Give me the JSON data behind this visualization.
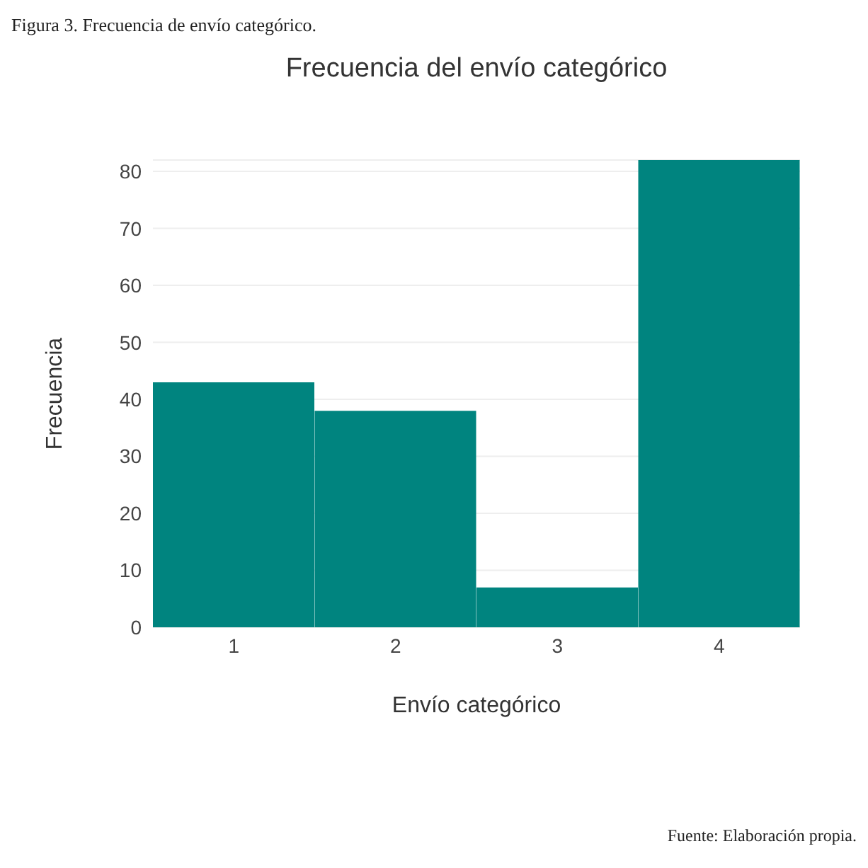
{
  "chart_data": {
    "type": "bar",
    "title": "Frecuencia del envío categórico",
    "xlabel": "Envío categórico",
    "ylabel": "Frecuencia",
    "categories": [
      "1",
      "2",
      "3",
      "4"
    ],
    "values": [
      43,
      38,
      7,
      82
    ],
    "color": "#00847f",
    "ylim": [
      0,
      82
    ],
    "yticks": [
      0,
      10,
      20,
      30,
      40,
      50,
      60,
      70,
      80
    ],
    "grid": "y",
    "annotations": [
      "Figura 3. Frecuencia de envío categórico.",
      "Fuente: Elaboración propia."
    ]
  }
}
